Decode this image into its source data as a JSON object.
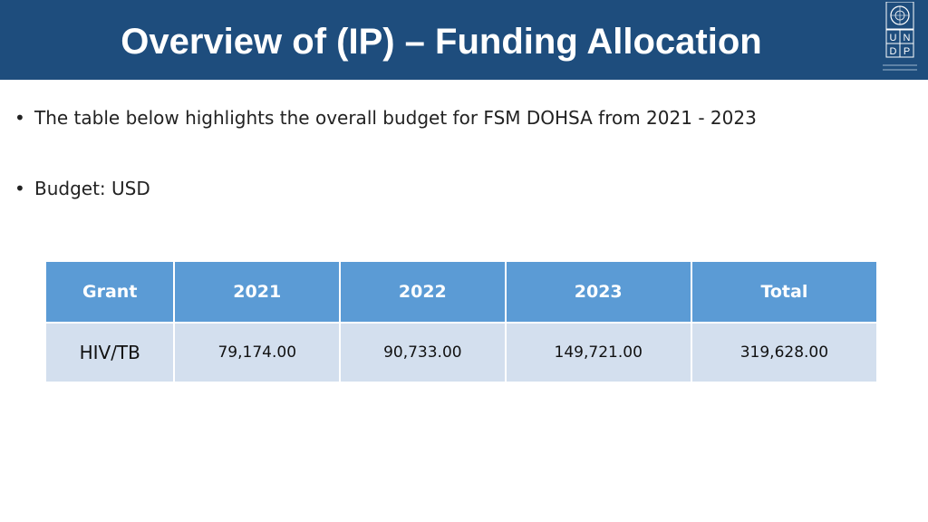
{
  "header": {
    "title": "Overview of (IP) – Funding Allocation",
    "logo_text": "UNDP",
    "color": "#1e4d7d"
  },
  "bullets": [
    "The table below highlights the overall budget for FSM DOHSA from 2021 - 2023",
    "Budget: USD"
  ],
  "table": {
    "headers": [
      "Grant",
      "2021",
      "2022",
      "2023",
      "Total"
    ],
    "rows": [
      [
        "HIV/TB",
        "79,174.00",
        "90,733.00",
        "149,721.00",
        "319,628.00"
      ]
    ],
    "header_color": "#5b9bd5",
    "row_color": "#d3dfee"
  }
}
